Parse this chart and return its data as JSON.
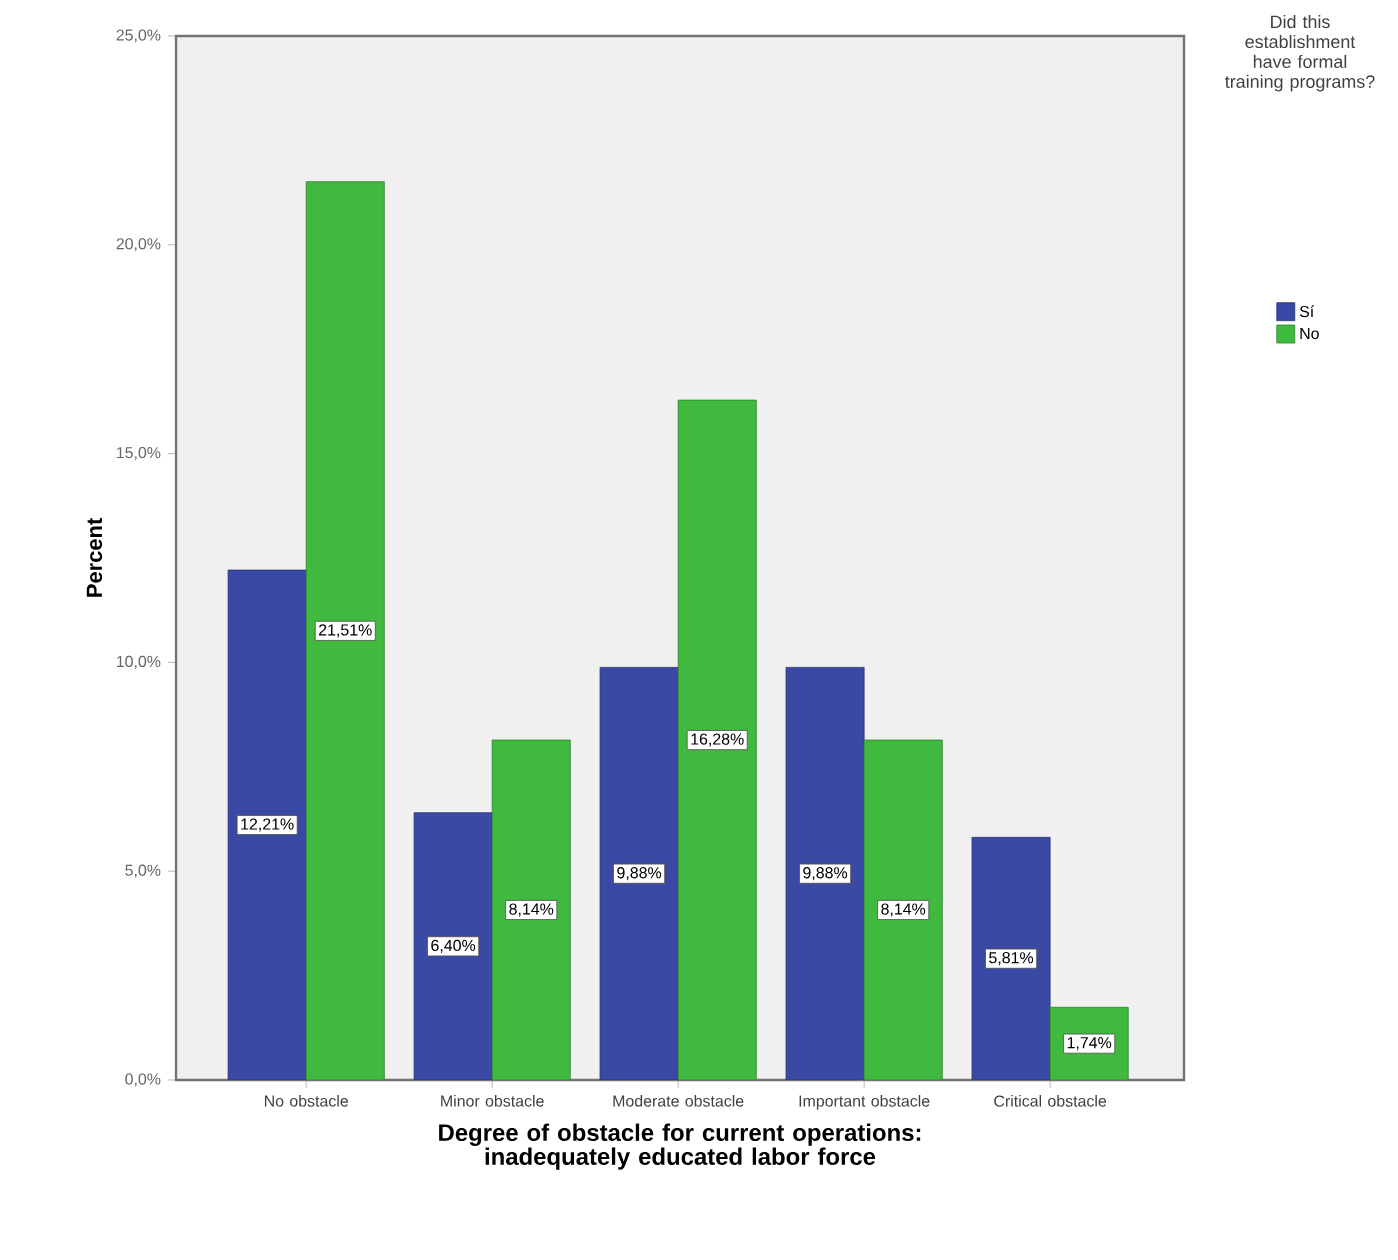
{
  "chart_data": {
    "type": "bar",
    "xlabel": "Degree of obstacle for current operations: inadequately educated labor force",
    "ylabel": "Percent",
    "legend_title": "Did this establishment have formal training programs?",
    "categories": [
      "No obstacle",
      "Minor obstacle",
      "Moderate obstacle",
      "Important obstacle",
      "Critical obstacle"
    ],
    "series": [
      {
        "name": "Sí",
        "color": "#3a49a3",
        "values": [
          12.21,
          6.4,
          9.88,
          9.88,
          5.81
        ],
        "value_labels": [
          "12,21%",
          "6,40%",
          "9,88%",
          "9,88%",
          "5,81%"
        ]
      },
      {
        "name": "No",
        "color": "#3fba3f",
        "values": [
          21.51,
          8.14,
          16.28,
          8.14,
          1.74
        ],
        "value_labels": [
          "21,51%",
          "8,14%",
          "16,28%",
          "8,14%",
          "1,74%"
        ]
      }
    ],
    "ylim": [
      0,
      25
    ],
    "yticks": [
      {
        "value": 0,
        "label": "0,0%"
      },
      {
        "value": 5,
        "label": "5,0%"
      },
      {
        "value": 10,
        "label": "10,0%"
      },
      {
        "value": 15,
        "label": "15,0%"
      },
      {
        "value": 20,
        "label": "20,0%"
      },
      {
        "value": 25,
        "label": "25,0%"
      }
    ],
    "grid": false,
    "legend": "right"
  }
}
